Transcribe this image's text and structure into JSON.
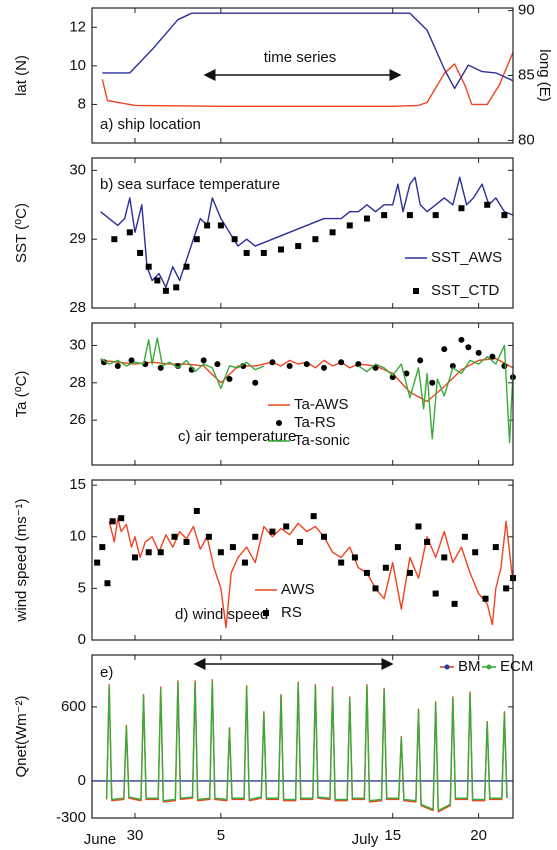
{
  "chart_data": [
    {
      "type": "line",
      "ylabel": "lat (N)",
      "y2label": "long (E)",
      "panel_label": "a) ship location",
      "arrow_label": "time series",
      "xlim": [
        -2.5,
        22
      ],
      "ylim": [
        6,
        13
      ],
      "yticks": [
        8,
        10,
        12
      ],
      "y2lim": [
        79.8,
        90.2
      ],
      "y2ticks": [
        80,
        85,
        90
      ],
      "y2color": "#2b2f9a",
      "series": [
        {
          "name": "lat",
          "color": "#ee4422",
          "mode": "line",
          "x": [
            -1.9,
            -1.6,
            0,
            5,
            10,
            15,
            16.5,
            17,
            18,
            18.6,
            19.2,
            19.6,
            20.5,
            21.2,
            22
          ],
          "values": [
            9.3,
            8.2,
            7.95,
            7.9,
            7.9,
            7.9,
            7.95,
            8.1,
            9.6,
            10.1,
            9.0,
            8.0,
            8.0,
            9.0,
            10.7
          ]
        },
        {
          "name": "long",
          "color": "#2b2f9a",
          "mode": "line",
          "axis": "y2",
          "x": [
            -1.9,
            -0.3,
            1,
            2.5,
            3.3,
            10,
            16,
            17,
            18,
            18.6,
            19.4,
            20.2,
            21,
            22
          ],
          "values": [
            85.2,
            85.2,
            87,
            89.3,
            89.8,
            89.8,
            89.8,
            88.5,
            85.5,
            84.0,
            85.8,
            85.3,
            85.2,
            84.6
          ]
        }
      ]
    },
    {
      "type": "line",
      "ylabel": "SST (⁰C)",
      "panel_label": "b) sea surface temperature",
      "legend": "lower right",
      "xlim": [
        -2.5,
        22
      ],
      "ylim": [
        28,
        30.18
      ],
      "yticks": [
        28,
        29,
        30
      ],
      "series": [
        {
          "name": "SST_AWS",
          "color": "#2b2f9a",
          "mode": "line",
          "x": [
            -2,
            -1.5,
            -1,
            -0.6,
            -0.3,
            0,
            0.4,
            0.7,
            1,
            1.4,
            1.8,
            2.2,
            2.6,
            3,
            3.4,
            3.8,
            4.2,
            4.5,
            5,
            5.5,
            6,
            6.5,
            7,
            8,
            9,
            10,
            11,
            12,
            12.5,
            13,
            13.5,
            14,
            14.5,
            15,
            15.3,
            15.6,
            16,
            16.3,
            16.6,
            17,
            17.5,
            18,
            18.5,
            18.9,
            19.3,
            19.7,
            20.2,
            20.6,
            21,
            21.5,
            22
          ],
          "values": [
            29.4,
            29.3,
            29.2,
            29.3,
            29.6,
            29.1,
            29.5,
            28.6,
            28.4,
            28.5,
            28.3,
            28.6,
            28.4,
            28.7,
            29.0,
            29.3,
            29.2,
            29.6,
            29.3,
            29.1,
            28.9,
            29.0,
            28.9,
            29.0,
            29.1,
            29.2,
            29.3,
            29.3,
            29.4,
            29.4,
            29.5,
            29.4,
            29.5,
            29.5,
            29.8,
            29.4,
            29.8,
            29.9,
            29.5,
            29.4,
            29.5,
            29.6,
            29.5,
            29.9,
            29.5,
            29.6,
            29.8,
            29.5,
            29.6,
            29.4,
            29.35
          ]
        },
        {
          "name": "SST_CTD",
          "color": "#000000",
          "mode": "markers",
          "marker": "square",
          "x": [
            -1.2,
            -0.3,
            0.3,
            0.8,
            1.3,
            1.8,
            2.4,
            3.0,
            3.6,
            4.2,
            5.0,
            5.8,
            6.5,
            7.5,
            8.5,
            9.5,
            10.5,
            11.5,
            12.5,
            13.5,
            14.5,
            16,
            17.5,
            19,
            20.5,
            21.5
          ],
          "values": [
            29.0,
            29.1,
            28.8,
            28.6,
            28.4,
            28.25,
            28.3,
            28.6,
            29.0,
            29.2,
            29.2,
            29.0,
            28.8,
            28.8,
            28.85,
            28.9,
            29.0,
            29.1,
            29.2,
            29.3,
            29.35,
            29.35,
            29.35,
            29.45,
            29.5,
            29.35
          ]
        }
      ]
    },
    {
      "type": "line",
      "ylabel": "Ta (⁰C)",
      "panel_label": "c) air temperature",
      "legend": "lower center",
      "xlim": [
        -2.5,
        22
      ],
      "ylim": [
        23.6,
        31.2
      ],
      "yticks": [
        26,
        28,
        30
      ],
      "series": [
        {
          "name": "Ta-AWS",
          "color": "#ee4422",
          "mode": "line",
          "x": [
            -2,
            -1,
            0,
            1,
            2,
            3,
            4,
            5,
            6,
            7,
            8,
            8.5,
            9,
            9.5,
            10,
            10.5,
            11,
            11.5,
            12,
            12.5,
            13,
            14,
            15,
            16,
            17,
            18,
            19,
            20,
            21,
            22
          ],
          "values": [
            29.2,
            29.1,
            29.0,
            29.1,
            29.0,
            29.0,
            28.9,
            28.0,
            28.9,
            28.9,
            29.1,
            28.9,
            29.2,
            29.0,
            29.1,
            28.8,
            29.2,
            28.9,
            29.1,
            28.8,
            29.0,
            28.9,
            28.5,
            27.5,
            27.0,
            27.8,
            28.7,
            29.2,
            29.3,
            28.8
          ]
        },
        {
          "name": "Ta-RS",
          "color": "#000000",
          "mode": "markers",
          "marker": "circle",
          "x": [
            -1.8,
            -1,
            -0.2,
            0.6,
            1.5,
            2.5,
            3.3,
            4,
            4.8,
            5.5,
            6.3,
            7,
            8,
            9,
            10,
            11,
            12,
            13,
            14,
            15,
            15.8,
            16.6,
            17.3,
            18,
            18.5,
            19,
            19.4,
            20,
            20.8,
            21.5,
            22
          ],
          "values": [
            29.1,
            28.9,
            29.2,
            29.0,
            28.8,
            28.9,
            28.7,
            29.2,
            29.0,
            28.2,
            28.9,
            28.0,
            29.1,
            28.9,
            29.0,
            28.8,
            29.1,
            29.0,
            28.8,
            28.3,
            28.5,
            29.2,
            28.0,
            29.8,
            28.9,
            30.3,
            29.9,
            29.6,
            29.4,
            28.9,
            28.3
          ]
        },
        {
          "name": "Ta-sonic",
          "color": "#3aaa3a",
          "mode": "line",
          "x": [
            -2,
            -1.5,
            -1,
            -0.5,
            0,
            0.5,
            0.8,
            1,
            1.3,
            1.6,
            2,
            2.5,
            3,
            3.5,
            4,
            4.5,
            5,
            5.5,
            6,
            6.5,
            7,
            7.5,
            10,
            13,
            13.5,
            14,
            14.5,
            15,
            15.5,
            16,
            16.5,
            16.8,
            17,
            17.3,
            17.6,
            18,
            18.5,
            19,
            19.5,
            20,
            20.5,
            21,
            21.5,
            21.8,
            22
          ],
          "values": [
            29.3,
            29.0,
            29.2,
            28.9,
            29.1,
            29.0,
            30.3,
            29.0,
            30.4,
            28.9,
            29.1,
            28.8,
            29.2,
            28.6,
            29.0,
            28.8,
            27.7,
            28.9,
            28.8,
            29.1,
            28.7,
            28.9,
            null,
            28.9,
            28.6,
            29.0,
            28.8,
            28.4,
            29.0,
            27.2,
            28.8,
            26.6,
            28.5,
            25.0,
            28.2,
            27.3,
            28.8,
            28.5,
            29.2,
            29.0,
            29.4,
            29.0,
            30.0,
            24.8,
            28.6
          ]
        }
      ]
    },
    {
      "type": "line",
      "ylabel": "wind speed (ms⁻¹)",
      "panel_label": "d) wind speed",
      "legend": "lower center",
      "xlim": [
        -2.5,
        22
      ],
      "ylim": [
        0,
        15.5
      ],
      "yticks": [
        0,
        5,
        10,
        15
      ],
      "series": [
        {
          "name": "AWS",
          "color": "#ee4422",
          "mode": "line",
          "x": [
            -1.5,
            -1.2,
            -1,
            -0.8,
            -0.5,
            -0.2,
            0,
            0.3,
            0.6,
            1,
            1.4,
            1.8,
            2.2,
            2.6,
            3,
            3.4,
            3.8,
            4.2,
            4.6,
            5,
            5.3,
            5.6,
            6,
            6.5,
            7,
            7.5,
            8,
            8.5,
            9,
            9.5,
            10,
            10.5,
            11,
            11.5,
            12,
            12.5,
            13,
            13.5,
            14,
            14.5,
            15,
            15.5,
            16,
            16.5,
            17,
            17.5,
            18,
            18.5,
            19,
            19.5,
            20,
            20.5,
            20.8,
            21,
            21.3,
            21.6,
            22
          ],
          "values": [
            11.5,
            9.5,
            11.8,
            10.5,
            11.2,
            9.0,
            10.0,
            8.0,
            9.5,
            10.0,
            8.5,
            10.2,
            9.0,
            10.5,
            9.8,
            11.0,
            8.8,
            10.0,
            7.0,
            5.0,
            1.2,
            6.5,
            8.0,
            9.0,
            7.5,
            11.0,
            10.0,
            10.8,
            10.2,
            11.3,
            10.5,
            11.0,
            10.0,
            8.5,
            8.0,
            9.0,
            7.0,
            6.5,
            5.0,
            4.0,
            7.5,
            3.0,
            8.0,
            6.0,
            10.0,
            8.0,
            10.5,
            7.5,
            9.0,
            6.5,
            4.5,
            3.5,
            1.5,
            5.0,
            7.0,
            11.5,
            5.5
          ]
        },
        {
          "name": "RS",
          "color": "#000000",
          "mode": "markers",
          "marker": "square",
          "x": [
            -2.2,
            -1.9,
            -1.6,
            -1.3,
            -0.8,
            0,
            0.8,
            1.5,
            2.3,
            3,
            3.6,
            4.3,
            5,
            5.7,
            6.4,
            7,
            8,
            8.8,
            9.6,
            10.4,
            11,
            12,
            12.8,
            13.5,
            14,
            14.6,
            15.3,
            16,
            16.5,
            17,
            17.5,
            18,
            18.6,
            19.2,
            19.8,
            20.4,
            21,
            21.6,
            22
          ],
          "values": [
            7.5,
            9.0,
            5.5,
            11.5,
            11.8,
            8.0,
            8.5,
            8.5,
            10.0,
            9.5,
            12.5,
            10.0,
            8.5,
            9.0,
            7.5,
            10.0,
            10.5,
            11.0,
            9.5,
            12.0,
            10.0,
            7.5,
            8.0,
            6.5,
            5.0,
            7.0,
            9.0,
            6.5,
            11.0,
            9.5,
            4.5,
            8.0,
            3.5,
            10.0,
            8.5,
            4.0,
            9.0,
            5.0,
            6.0
          ]
        }
      ]
    },
    {
      "type": "line",
      "ylabel": "Qnet(Wm⁻²)",
      "panel_label": "e)",
      "legend": "upper right",
      "month_labels": [
        "June",
        "July"
      ],
      "xlim": [
        -2.5,
        22
      ],
      "xticks": [
        {
          "value": 0,
          "label": "30"
        },
        5,
        15,
        20
      ],
      "ylim": [
        -300,
        1020
      ],
      "yticks": [
        -300,
        0,
        600
      ],
      "zero_line_color": "#2b3a9a",
      "x": [
        -1.65,
        -1.5,
        -1.35,
        -0.65,
        -0.5,
        -0.35,
        0.35,
        0.5,
        0.65,
        1.35,
        1.5,
        1.65,
        2.35,
        2.5,
        2.65,
        3.35,
        3.5,
        3.65,
        4.35,
        4.5,
        4.65,
        5.35,
        5.5,
        5.65,
        6.35,
        6.5,
        6.65,
        7.35,
        7.5,
        7.65,
        8.35,
        8.5,
        8.65,
        9.35,
        9.5,
        9.65,
        10.35,
        10.5,
        10.65,
        11.35,
        11.5,
        11.65,
        12.35,
        12.5,
        12.65,
        13.35,
        13.5,
        13.65,
        14.35,
        14.5,
        14.65,
        15.35,
        15.5,
        15.65,
        16.35,
        16.5,
        16.65,
        17.35,
        17.5,
        17.65,
        18.35,
        18.5,
        18.65,
        19.35,
        19.5,
        19.65,
        20.35,
        20.5,
        20.65,
        21.35,
        21.5,
        21.65
      ],
      "series": [
        {
          "name": "BM",
          "color": "#ee4422",
          "marker_color": "#2b3a9a",
          "mode": "line",
          "values": [
            -150,
            780,
            -160,
            -150,
            450,
            -140,
            -160,
            700,
            -150,
            -150,
            760,
            -170,
            -160,
            810,
            -150,
            -140,
            810,
            -160,
            -150,
            820,
            -150,
            -160,
            430,
            -150,
            -150,
            770,
            -160,
            -140,
            560,
            -150,
            -150,
            700,
            -160,
            -160,
            800,
            -150,
            -150,
            780,
            -140,
            -150,
            760,
            -160,
            -160,
            680,
            -150,
            -150,
            780,
            -170,
            -160,
            750,
            -150,
            -150,
            360,
            -160,
            -170,
            580,
            -200,
            -240,
            640,
            -250,
            -200,
            680,
            -150,
            -150,
            720,
            -160,
            -160,
            480,
            -150,
            -150,
            560,
            -140
          ]
        },
        {
          "name": "ECM",
          "color": "#3aaa3a",
          "marker_color": "#3aaa3a",
          "mode": "line",
          "values": [
            -140,
            765,
            -150,
            -140,
            440,
            -130,
            -150,
            690,
            -140,
            -140,
            745,
            -160,
            -150,
            800,
            -140,
            -130,
            795,
            -150,
            -140,
            805,
            -140,
            -150,
            420,
            -140,
            -140,
            760,
            -150,
            -130,
            550,
            -140,
            -140,
            690,
            -150,
            -150,
            790,
            -140,
            -140,
            770,
            -130,
            -140,
            745,
            -150,
            -150,
            670,
            -140,
            -140,
            770,
            -160,
            -150,
            740,
            -140,
            -140,
            350,
            -150,
            -160,
            570,
            -190,
            -230,
            630,
            -240,
            -190,
            670,
            -140,
            -140,
            710,
            -150,
            -150,
            470,
            -140,
            -140,
            550,
            -130
          ]
        }
      ]
    }
  ]
}
